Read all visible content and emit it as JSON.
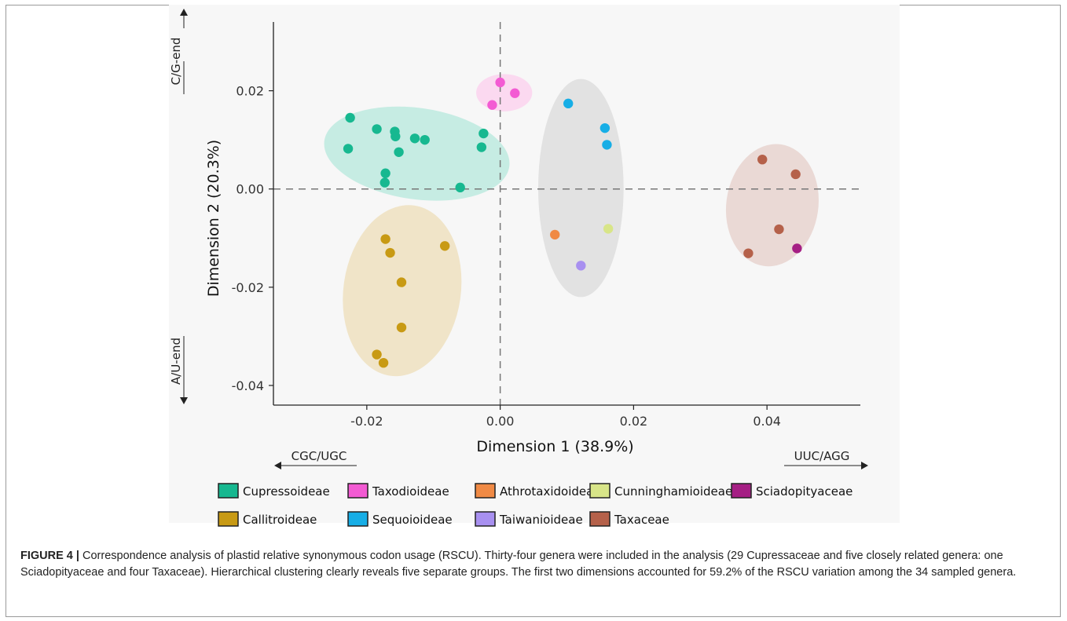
{
  "chart_data": {
    "type": "scatter",
    "xlabel": "Dimension 1 (38.9%)",
    "ylabel": "Dimension 2 (20.3%)",
    "xlim": [
      -0.034,
      0.054
    ],
    "ylim": [
      -0.044,
      0.034
    ],
    "xticks": [
      -0.02,
      0.0,
      0.02,
      0.04
    ],
    "yticks": [
      -0.04,
      -0.02,
      0.0,
      0.02
    ],
    "xtick_labels": [
      "-0.02",
      "0.00",
      "0.02",
      "0.04"
    ],
    "ytick_labels": [
      "-0.04",
      "-0.02",
      "0.00",
      "0.02"
    ],
    "reference_lines": {
      "x": 0.0,
      "y": 0.0,
      "style": "dashed"
    },
    "grid": false,
    "legend_position": "bottom",
    "direction_labels": {
      "y_top": "C/G-end",
      "y_bottom": "A/U-end",
      "x_left": "CGC/UGC",
      "x_right": "UUC/AGG"
    },
    "series": [
      {
        "name": "Cupressoideae",
        "color": "#17b890",
        "x": [
          -0.0225,
          -0.0185,
          -0.0158,
          -0.0228,
          -0.0157,
          -0.0128,
          -0.0113,
          -0.0025,
          -0.0152,
          -0.0028,
          -0.0172,
          -0.0173,
          -0.006
        ],
        "y": [
          0.0145,
          0.0122,
          0.0117,
          0.0082,
          0.0107,
          0.0103,
          0.01,
          0.0113,
          0.0075,
          0.0085,
          0.0032,
          0.0013,
          0.0003
        ]
      },
      {
        "name": "Taxodioideae",
        "color": "#f35bd3",
        "x": [
          0.0,
          0.0022,
          -0.0012
        ],
        "y": [
          0.0217,
          0.0195,
          0.0171
        ]
      },
      {
        "name": "Athrotaxidoideae",
        "color": "#f08a45",
        "x": [
          0.0082
        ],
        "y": [
          -0.0093
        ]
      },
      {
        "name": "Cunninghamioideae",
        "color": "#d8e588",
        "x": [
          0.0162
        ],
        "y": [
          -0.0081
        ]
      },
      {
        "name": "Sciadopityaceae",
        "color": "#a51f84",
        "x": [
          0.0445
        ],
        "y": [
          -0.0121
        ]
      },
      {
        "name": "Callitroideae",
        "color": "#c89a14",
        "x": [
          -0.0172,
          -0.0165,
          -0.0083,
          -0.0148,
          -0.0148,
          -0.0185,
          -0.0175
        ],
        "y": [
          -0.0102,
          -0.013,
          -0.0116,
          -0.019,
          -0.0282,
          -0.0337,
          -0.0354
        ]
      },
      {
        "name": "Sequoioideae",
        "color": "#17aee6",
        "x": [
          0.0102,
          0.0157,
          0.016
        ],
        "y": [
          0.0174,
          0.0124,
          0.009
        ]
      },
      {
        "name": "Taiwanioideae",
        "color": "#a890f0",
        "x": [
          0.0121
        ],
        "y": [
          -0.0156
        ]
      },
      {
        "name": "Taxaceae",
        "color": "#b5614a",
        "x": [
          0.0393,
          0.0443,
          0.0418,
          0.0372
        ],
        "y": [
          0.006,
          0.003,
          -0.0082,
          -0.0131
        ]
      }
    ],
    "clusters": [
      {
        "group": "Cupressoideae",
        "fill": "#bdeadf",
        "cx": -0.0125,
        "cy": 0.0072,
        "rx": 0.014,
        "ry": 0.0093,
        "rot": 8
      },
      {
        "group": "Taxodioideae",
        "fill": "#fbd4ef",
        "cx": 0.0006,
        "cy": 0.0196,
        "rx": 0.0042,
        "ry": 0.0038,
        "rot": 0
      },
      {
        "group": "Sequoioideae",
        "fill": "#dedede",
        "cx": 0.0121,
        "cy": 0.0002,
        "rx": 0.0064,
        "ry": 0.0222,
        "rot": 0
      },
      {
        "group": "Callitroideae",
        "fill": "#efe1c0",
        "cx": -0.0147,
        "cy": -0.0207,
        "rx": 0.0088,
        "ry": 0.0175,
        "rot": 8
      },
      {
        "group": "Taxaceae",
        "fill": "#e8d3cf",
        "cx": 0.0408,
        "cy": -0.0033,
        "rx": 0.0069,
        "ry": 0.0125,
        "rot": 8
      }
    ]
  },
  "legend": {
    "rows": [
      [
        {
          "label": "Cupressoideae",
          "color": "#17b890"
        },
        {
          "label": "Taxodioideae",
          "color": "#f35bd3"
        },
        {
          "label": "Athrotaxidoideae",
          "color": "#f08a45"
        },
        {
          "label": "Cunninghamioideae",
          "color": "#d8e588"
        },
        {
          "label": "Sciadopityaceae",
          "color": "#a51f84"
        }
      ],
      [
        {
          "label": "Callitroideae",
          "color": "#c89a14"
        },
        {
          "label": "Sequoioideae",
          "color": "#17aee6"
        },
        {
          "label": "Taiwanioideae",
          "color": "#a890f0"
        },
        {
          "label": "Taxaceae",
          "color": "#b5614a"
        }
      ]
    ]
  },
  "caption": {
    "figure_label": "FIGURE 4 |",
    "text": " Correspondence analysis of plastid relative synonymous codon usage (RSCU). Thirty-four genera were included in the analysis (29 Cupressaceae and five closely related genera: one Sciadopityaceae and four Taxaceae). Hierarchical clustering clearly reveals five separate groups. The first two dimensions accounted for 59.2% of the RSCU variation among the 34 sampled genera."
  }
}
